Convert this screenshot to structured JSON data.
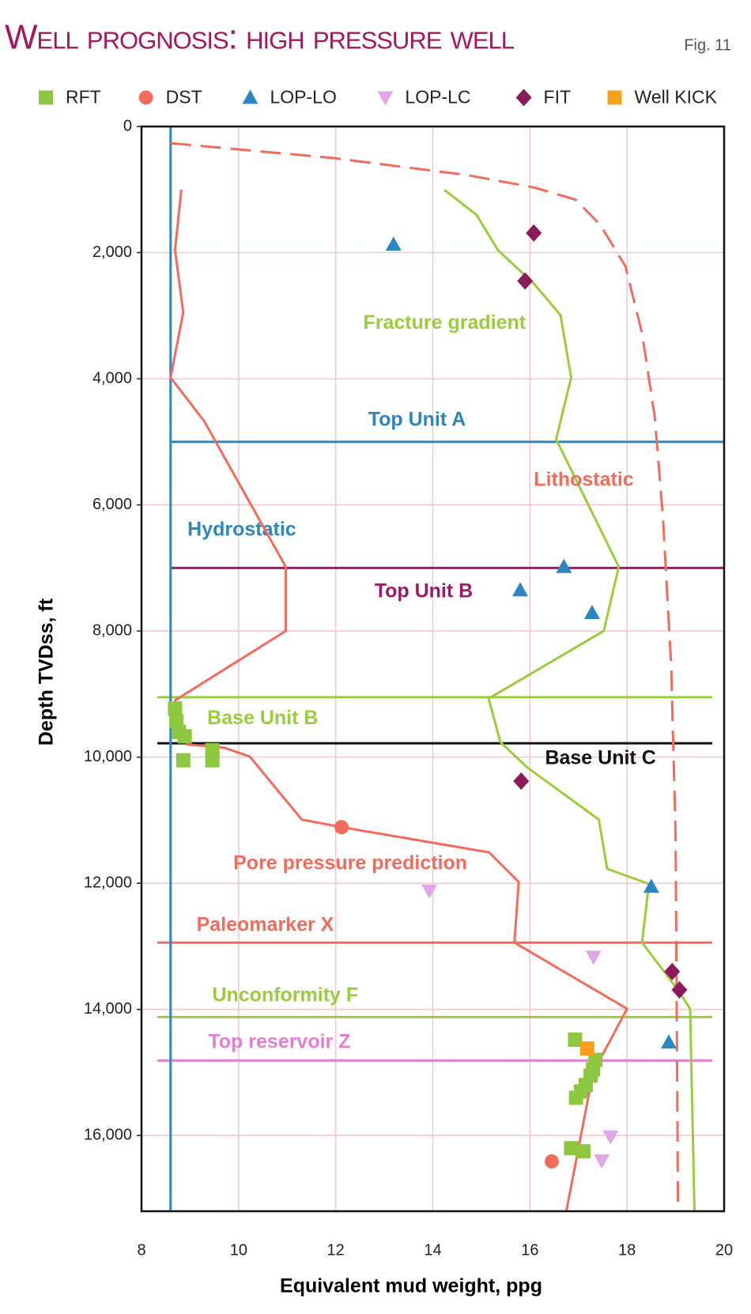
{
  "chart_data": {
    "type": "line",
    "title": "Well prognosis: high pressure well",
    "figure_label": "Fig. 11",
    "x_label": "Equivalent mud weight, ppg",
    "y_label": "Depth TVDss, ft",
    "xlim": [
      8,
      20
    ],
    "xticks": [
      8,
      10,
      12,
      14,
      16,
      18,
      20
    ],
    "ylim": [
      0,
      17200
    ],
    "yticks": [
      0,
      {
        "value": 2000,
        "label": "2,000"
      },
      {
        "value": 4000,
        "label": "4,000"
      },
      {
        "value": 6000,
        "label": "6,000"
      },
      {
        "value": 8000,
        "label": "8,000"
      },
      {
        "value": 10000,
        "label": "10,000"
      },
      {
        "value": 12000,
        "label": "12,000"
      },
      {
        "value": 14000,
        "label": "14,000"
      },
      {
        "value": 16000,
        "label": "16,000"
      }
    ],
    "y_inverted": true,
    "grid": true,
    "grid_color": "#f4c6cf",
    "series": [
      {
        "name": "Hydrostatic",
        "color": "#2e86c1",
        "style": "solid",
        "x": [
          8.6,
          8.6
        ],
        "y": [
          0,
          17200
        ]
      },
      {
        "name": "Pore pressure prediction",
        "color": "#f26b5b",
        "style": "solid",
        "x": [
          8.82,
          8.69,
          8.86,
          8.6,
          9.29,
          10.97,
          10.97,
          8.69,
          8.95,
          9.7,
          10.23,
          11.3,
          12.12,
          15.16,
          15.77,
          15.68,
          18.0,
          17.3,
          16.75
        ],
        "y": [
          1000,
          1960,
          2950,
          3980,
          4670,
          6980,
          8000,
          9100,
          9800,
          9850,
          9990,
          10990,
          11110,
          11510,
          11980,
          12940,
          13990,
          15000,
          17200
        ]
      },
      {
        "name": "Fracture gradient",
        "color": "#9acd3c",
        "style": "solid",
        "x": [
          14.24,
          14.9,
          15.34,
          16.08,
          16.63,
          16.85,
          16.54,
          17.83,
          17.52,
          15.15,
          15.39,
          15.94,
          17.42,
          17.59,
          18.45,
          18.31,
          19.0,
          19.3,
          19.39
        ],
        "y": [
          1005,
          1400,
          1960,
          2490,
          2990,
          3980,
          4960,
          6980,
          8000,
          9070,
          9760,
          10160,
          10990,
          11770,
          12010,
          12940,
          13640,
          13990,
          17200
        ]
      },
      {
        "name": "Lithostatic",
        "color": "#f26b5b",
        "style": "dashed",
        "x": [
          8.6,
          11.95,
          14.7,
          16.08,
          16.94,
          17.45,
          17.97,
          18.31,
          18.57,
          18.74,
          18.91,
          19.0,
          19.05
        ],
        "y": [
          265,
          500,
          770,
          965,
          1160,
          1560,
          2220,
          3280,
          4600,
          6190,
          8570,
          11220,
          17200
        ]
      }
    ],
    "markers": [
      {
        "label": "Top Unit A",
        "y": 5000,
        "color": "#2e86c1"
      },
      {
        "label": "Top Unit B",
        "y": 7000,
        "color": "#9b1b6a"
      },
      {
        "label": "Base Unit B",
        "y": 9050,
        "color": "#9acd3c"
      },
      {
        "label": "Base Unit C",
        "y": 9780,
        "color": "#111111"
      },
      {
        "label": "Paleomarker X",
        "y": 12940,
        "color": "#f26b5b"
      },
      {
        "label": "Unconformity F",
        "y": 14120,
        "color": "#9acd3c"
      },
      {
        "label": "Top reservoir Z",
        "y": 14810,
        "color": "#e47fd0"
      }
    ],
    "points": [
      {
        "name": "RFT",
        "color": "#8dc63f",
        "marker": "square",
        "x": [
          8.69,
          8.72,
          8.77,
          8.89,
          8.86,
          9.46,
          9.46,
          16.93,
          17.35,
          17.3,
          17.25,
          17.15,
          17.05,
          16.95,
          16.85,
          17.1
        ],
        "y": [
          9230,
          9430,
          9600,
          9670,
          10050,
          9890,
          10050,
          14480,
          14800,
          14950,
          15050,
          15200,
          15300,
          15400,
          16200,
          16250
        ]
      },
      {
        "name": "DST",
        "color": "#f26b5b",
        "marker": "circle",
        "x": [
          12.12,
          16.45
        ],
        "y": [
          11110,
          16410
        ]
      },
      {
        "name": "LOP-LO",
        "color": "#2e86c1",
        "marker": "triangle",
        "x": [
          13.19,
          16.7,
          15.8,
          17.28,
          18.5,
          18.86
        ],
        "y": [
          1870,
          6980,
          7350,
          7710,
          12050,
          14520
        ]
      },
      {
        "name": "LOP-LC",
        "color": "#dfa6e8",
        "marker": "triangle-down",
        "x": [
          13.93,
          17.31,
          17.66,
          17.48
        ],
        "y": [
          12120,
          13170,
          16020,
          16400
        ]
      },
      {
        "name": "FIT",
        "color": "#8b1a5a",
        "marker": "diamond",
        "x": [
          16.08,
          15.9,
          15.82,
          18.93,
          19.08
        ],
        "y": [
          1690,
          2450,
          10380,
          13400,
          13690
        ]
      },
      {
        "name": "Well KICK",
        "color": "#f7a11a",
        "marker": "square",
        "x": [
          17.18
        ],
        "y": [
          14620
        ]
      }
    ]
  }
}
